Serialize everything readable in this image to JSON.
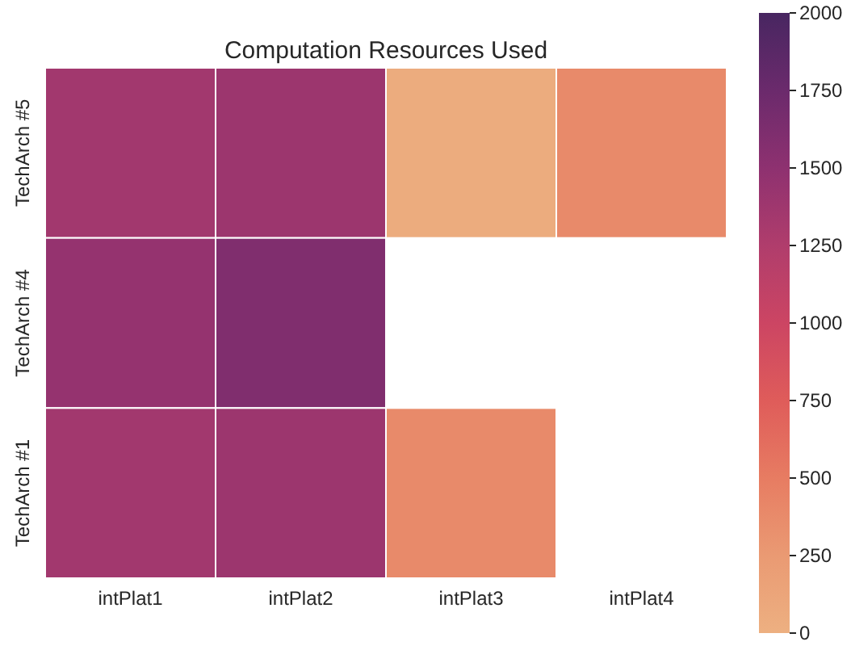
{
  "chart_data": {
    "type": "heatmap",
    "title": "Computation Resources Used",
    "categories": [
      "intPlat1",
      "intPlat2",
      "intPlat3",
      "intPlat4"
    ],
    "y_categories": [
      "TechArch #5",
      "TechArch #4",
      "TechArch #1"
    ],
    "cells": [
      [
        1350,
        1400,
        50,
        380
      ],
      [
        1450,
        1600,
        null,
        null
      ],
      [
        1350,
        1400,
        380,
        null
      ]
    ],
    "clim": [
      0,
      2000
    ],
    "cticks": [
      0,
      250,
      500,
      750,
      1000,
      1250,
      1500,
      1750,
      2000
    ]
  }
}
